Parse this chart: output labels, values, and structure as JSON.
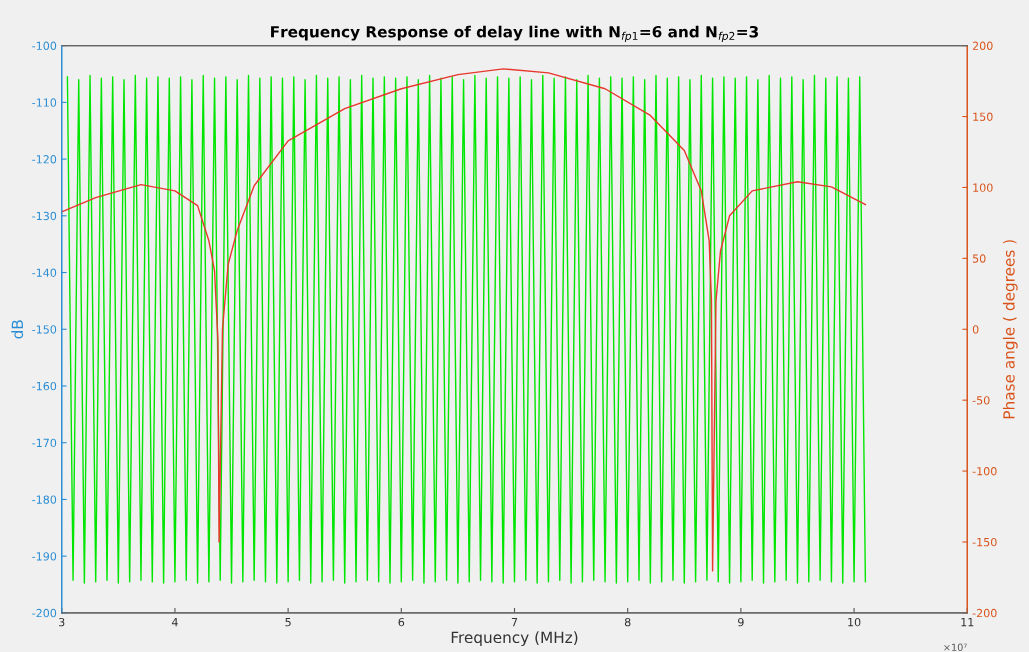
{
  "chart_data": {
    "type": "line",
    "title": "Frequency Response of delay line with N$_{fp1}$=6 and N$_{fp2}$=3",
    "xlabel": "Frequency (MHz)",
    "ylabel": "dB",
    "y2label": "Phase angle ( degrees )",
    "annotations": [
      "×10⁷"
    ],
    "xlim": [
      3,
      11
    ],
    "xticks": [
      3,
      4,
      5,
      6,
      7,
      8,
      9,
      10,
      11
    ],
    "ylim": [
      -200,
      -100
    ],
    "yticks": [
      -200,
      -190,
      -180,
      -170,
      -160,
      -150,
      -140,
      -130,
      -120,
      -110,
      -100
    ],
    "y2lim": [
      -200,
      200
    ],
    "y2ticks": [
      -200,
      -150,
      -100,
      -50,
      0,
      50,
      100,
      150,
      200
    ],
    "grid": false,
    "legend": false,
    "series": [
      {
        "color": "#00e600",
        "axis": "y2",
        "x": [
          3.05,
          3.1,
          3.15,
          3.2,
          3.25,
          3.3,
          3.35,
          3.4,
          3.45,
          3.5,
          3.55,
          3.6,
          3.65,
          3.7,
          3.75,
          3.8,
          3.85,
          3.9,
          3.95,
          4,
          4.05,
          4.1,
          4.15,
          4.2,
          4.25,
          4.3,
          4.35,
          4.4,
          4.45,
          4.5,
          4.55,
          4.6,
          4.65,
          4.7,
          4.75,
          4.8,
          4.85,
          4.9,
          4.95,
          5,
          5.05,
          5.1,
          5.15,
          5.2,
          5.25,
          5.3,
          5.35,
          5.4,
          5.45,
          5.5,
          5.55,
          5.6,
          5.65,
          5.7,
          5.75,
          5.8,
          5.85,
          5.9,
          5.95,
          6,
          6.05,
          6.1,
          6.15,
          6.2,
          6.25,
          6.3,
          6.35,
          6.4,
          6.45,
          6.5,
          6.55,
          6.6,
          6.65,
          6.7,
          6.75,
          6.8,
          6.85,
          6.9,
          6.95,
          7,
          7.05,
          7.1,
          7.15,
          7.2,
          7.25,
          7.3,
          7.35,
          7.4,
          7.45,
          7.5,
          7.55,
          7.6,
          7.65,
          7.7,
          7.75,
          7.8,
          7.85,
          7.9,
          7.95,
          8,
          8.05,
          8.1,
          8.15,
          8.2,
          8.25,
          8.3,
          8.35,
          8.4,
          8.45,
          8.5,
          8.55,
          8.6,
          8.65,
          8.7,
          8.75,
          8.8,
          8.85,
          8.9,
          8.95,
          9,
          9.05,
          9.1,
          9.15,
          9.2,
          9.25,
          9.3,
          9.35,
          9.4,
          9.45,
          9.5,
          9.55,
          9.6,
          9.65,
          9.7,
          9.75,
          9.8,
          9.85,
          9.9,
          9.95,
          10,
          10.05,
          10.1
        ],
        "values": [
          178,
          -177,
          176,
          -179,
          179,
          -178,
          177,
          -177,
          178,
          -179,
          176,
          -178,
          179,
          -177,
          177,
          -178,
          178,
          -179,
          177,
          -178,
          178,
          -177,
          176,
          -179,
          179,
          -178,
          177,
          -177,
          178,
          -179,
          176,
          -178,
          179,
          -177,
          177,
          -178,
          178,
          -179,
          177,
          -178,
          178,
          -177,
          176,
          -179,
          179,
          -178,
          177,
          -177,
          178,
          -179,
          176,
          -178,
          179,
          -177,
          177,
          -178,
          178,
          -179,
          177,
          -178,
          178,
          -177,
          176,
          -179,
          179,
          -178,
          177,
          -177,
          178,
          -179,
          176,
          -178,
          179,
          -177,
          177,
          -178,
          178,
          -179,
          177,
          -178,
          178,
          -177,
          176,
          -179,
          179,
          -178,
          177,
          -177,
          178,
          -179,
          176,
          -178,
          179,
          -177,
          177,
          -178,
          178,
          -179,
          177,
          -178,
          178,
          -177,
          176,
          -179,
          179,
          -178,
          177,
          -177,
          178,
          -179,
          176,
          -178,
          179,
          -177,
          177,
          -178,
          178,
          -179,
          177,
          -178,
          178,
          -177,
          176,
          -179,
          179,
          -178,
          177,
          -177,
          178,
          -179,
          176,
          -178,
          179,
          -177,
          177,
          -178,
          178,
          -179,
          177,
          -178,
          178,
          -178
        ]
      },
      {
        "color": "#e8372c",
        "x": [
          3.0,
          3.3,
          3.7,
          4.0,
          4.2,
          4.3,
          4.35,
          4.38,
          4.39,
          4.42,
          4.47,
          4.55,
          4.7,
          5.0,
          5.5,
          6.0,
          6.5,
          6.9,
          7.3,
          7.8,
          8.2,
          8.5,
          8.65,
          8.72,
          8.74,
          8.75,
          8.78,
          8.82,
          8.9,
          9.1,
          9.5,
          9.8,
          10.1
        ],
        "values": [
          -129.3,
          -126.8,
          -124.5,
          -125.6,
          -128.2,
          -134.4,
          -139.7,
          -152,
          -187.5,
          -150,
          -138.6,
          -132.6,
          -124.7,
          -116.8,
          -111.1,
          -107.6,
          -105.1,
          -104.1,
          -104.8,
          -107.6,
          -112.3,
          -118.5,
          -125.6,
          -134.4,
          -145,
          -192.6,
          -145,
          -136.2,
          -130,
          -125.6,
          -124,
          -124.9,
          -128
        ]
      }
    ]
  }
}
